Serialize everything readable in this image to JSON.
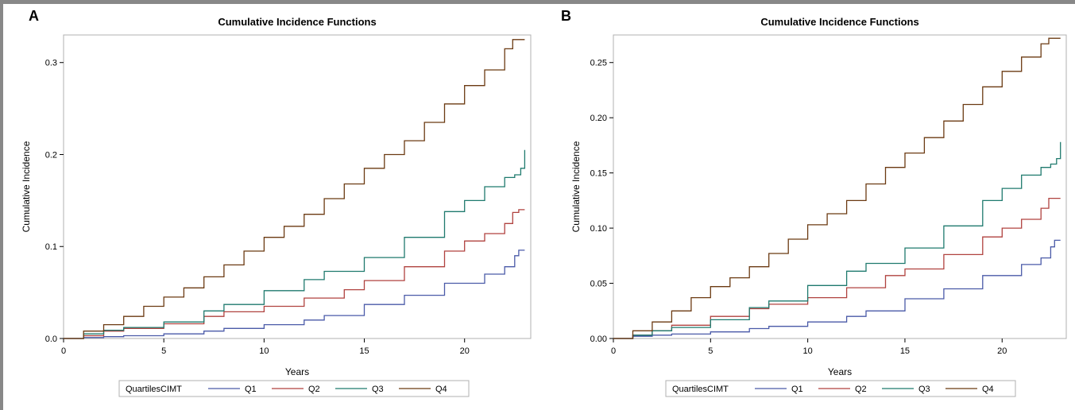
{
  "colors": {
    "Q1": "#4a5aa8",
    "Q2": "#b0423f",
    "Q3": "#1f7a6e",
    "Q4": "#6b3a12",
    "frame": "#888888"
  },
  "chart_data": [
    {
      "panel": "A",
      "type": "line",
      "step": true,
      "title": "Cumulative Incidence Functions",
      "xlabel": "Years",
      "ylabel": "Cumulative Incidence",
      "xlim": [
        0,
        23.3
      ],
      "ylim": [
        0,
        0.33
      ],
      "xticks": [
        0,
        5,
        10,
        15,
        20
      ],
      "xtick_labels": [
        "0",
        "5",
        "10",
        "15",
        "20"
      ],
      "yticks": [
        0,
        0.1,
        0.2,
        0.3
      ],
      "ytick_labels": [
        "0.0",
        "0.1",
        "0.2",
        "0.3"
      ],
      "grid": false,
      "legend": {
        "position": "bottom",
        "title": "QuartilesCIMT",
        "entries": [
          "Q1",
          "Q2",
          "Q3",
          "Q4"
        ]
      },
      "series": [
        {
          "name": "Q1",
          "x": [
            0,
            1,
            2,
            3,
            5,
            7,
            8,
            10,
            12,
            13,
            15,
            17,
            19,
            21,
            22,
            22.5,
            22.7,
            23
          ],
          "y": [
            0,
            0.001,
            0.002,
            0.003,
            0.005,
            0.008,
            0.011,
            0.015,
            0.02,
            0.025,
            0.037,
            0.047,
            0.06,
            0.07,
            0.078,
            0.09,
            0.096,
            0.096
          ]
        },
        {
          "name": "Q2",
          "x": [
            0,
            1,
            2,
            3,
            5,
            7,
            8,
            10,
            12,
            14,
            15,
            17,
            19,
            20,
            21,
            22,
            22.4,
            22.7,
            23
          ],
          "y": [
            0,
            0.003,
            0.008,
            0.011,
            0.016,
            0.024,
            0.029,
            0.035,
            0.044,
            0.053,
            0.063,
            0.078,
            0.095,
            0.106,
            0.114,
            0.125,
            0.137,
            0.14,
            0.14
          ]
        },
        {
          "name": "Q3",
          "x": [
            0,
            1,
            2,
            3,
            5,
            7,
            8,
            10,
            12,
            13,
            15,
            17,
            19,
            20,
            21,
            22,
            22.5,
            22.8,
            23
          ],
          "y": [
            0,
            0.005,
            0.009,
            0.012,
            0.018,
            0.03,
            0.037,
            0.052,
            0.064,
            0.073,
            0.088,
            0.11,
            0.138,
            0.15,
            0.165,
            0.175,
            0.178,
            0.185,
            0.205
          ]
        },
        {
          "name": "Q4",
          "x": [
            0,
            1,
            2,
            3,
            4,
            5,
            6,
            7,
            8,
            9,
            10,
            11,
            12,
            13,
            14,
            15,
            16,
            17,
            18,
            19,
            20,
            21,
            22,
            22.4,
            23
          ],
          "y": [
            0,
            0.008,
            0.015,
            0.024,
            0.035,
            0.045,
            0.055,
            0.067,
            0.08,
            0.095,
            0.11,
            0.122,
            0.135,
            0.152,
            0.168,
            0.185,
            0.2,
            0.215,
            0.235,
            0.255,
            0.275,
            0.292,
            0.315,
            0.325,
            0.325
          ]
        }
      ]
    },
    {
      "panel": "B",
      "type": "line",
      "step": true,
      "title": "Cumulative Incidence Functions",
      "xlabel": "Years",
      "ylabel": "Cumulative Incidence",
      "xlim": [
        0,
        23.3
      ],
      "ylim": [
        0,
        0.275
      ],
      "xticks": [
        0,
        5,
        10,
        15,
        20
      ],
      "xtick_labels": [
        "0",
        "5",
        "10",
        "15",
        "20"
      ],
      "yticks": [
        0,
        0.05,
        0.1,
        0.15,
        0.2,
        0.25
      ],
      "ytick_labels": [
        "0.00",
        "0.05",
        "0.10",
        "0.15",
        "0.20",
        "0.25"
      ],
      "grid": false,
      "legend": {
        "position": "bottom",
        "title": "QuartilesCIMT",
        "entries": [
          "Q1",
          "Q2",
          "Q3",
          "Q4"
        ]
      },
      "series": [
        {
          "name": "Q1",
          "x": [
            0,
            1,
            2,
            3,
            5,
            7,
            8,
            10,
            12,
            13,
            15,
            17,
            19,
            21,
            22,
            22.5,
            22.7,
            23
          ],
          "y": [
            0,
            0.002,
            0.003,
            0.004,
            0.006,
            0.009,
            0.011,
            0.015,
            0.02,
            0.025,
            0.036,
            0.045,
            0.057,
            0.067,
            0.073,
            0.083,
            0.089,
            0.089
          ]
        },
        {
          "name": "Q2",
          "x": [
            0,
            1,
            2,
            3,
            5,
            7,
            8,
            10,
            12,
            14,
            15,
            17,
            19,
            20,
            21,
            22,
            22.4,
            23
          ],
          "y": [
            0,
            0.003,
            0.007,
            0.012,
            0.02,
            0.027,
            0.031,
            0.037,
            0.046,
            0.057,
            0.063,
            0.076,
            0.092,
            0.1,
            0.108,
            0.118,
            0.127,
            0.127
          ]
        },
        {
          "name": "Q3",
          "x": [
            0,
            1,
            2,
            3,
            5,
            7,
            8,
            10,
            12,
            13,
            15,
            17,
            19,
            20,
            21,
            22,
            22.5,
            22.8,
            23
          ],
          "y": [
            0,
            0.003,
            0.007,
            0.01,
            0.017,
            0.028,
            0.034,
            0.048,
            0.061,
            0.068,
            0.082,
            0.102,
            0.125,
            0.136,
            0.148,
            0.155,
            0.158,
            0.163,
            0.178
          ]
        },
        {
          "name": "Q4",
          "x": [
            0,
            1,
            2,
            3,
            4,
            5,
            6,
            7,
            8,
            9,
            10,
            11,
            12,
            13,
            14,
            15,
            16,
            17,
            18,
            19,
            20,
            21,
            22,
            22.4,
            23
          ],
          "y": [
            0,
            0.007,
            0.015,
            0.025,
            0.037,
            0.047,
            0.055,
            0.065,
            0.077,
            0.09,
            0.103,
            0.113,
            0.125,
            0.14,
            0.155,
            0.168,
            0.182,
            0.197,
            0.212,
            0.228,
            0.242,
            0.255,
            0.267,
            0.272,
            0.272
          ]
        }
      ]
    }
  ]
}
